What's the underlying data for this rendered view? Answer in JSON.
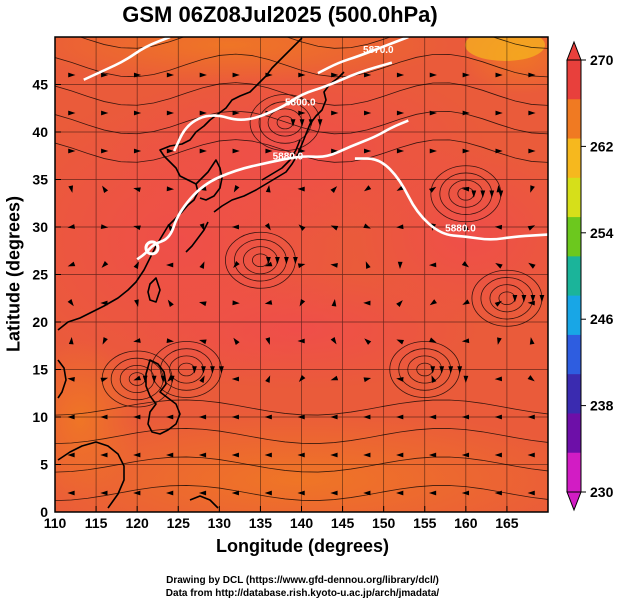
{
  "title": "GSM 06Z08Jul2025 (500.0hPa)",
  "xlabel": "Longitude (degrees)",
  "ylabel": "Latitude  (degrees)",
  "credits": {
    "line1": "Drawing by DCL (https://www.gfd-dennou.org/library/dcl/)",
    "line2": "Data from http://database.rish.kyoto-u.ac.jp/arch/jmadata/"
  },
  "chart_data": {
    "type": "heatmap",
    "variable_range": [
      230,
      270
    ],
    "xlim": [
      110,
      170
    ],
    "ylim": [
      0,
      50
    ],
    "x_ticks": [
      110,
      115,
      120,
      125,
      130,
      135,
      140,
      145,
      150,
      155,
      160,
      165
    ],
    "y_ticks": [
      0,
      5,
      10,
      15,
      20,
      25,
      30,
      35,
      40,
      45
    ],
    "colorbar": {
      "ticks": [
        270,
        262,
        254,
        246,
        238,
        230
      ],
      "colors": [
        "#e8403c",
        "#f07a22",
        "#f6b81e",
        "#d6df1a",
        "#6cc81e",
        "#1bb49a",
        "#18a6e6",
        "#2e5de0",
        "#3a2bb0",
        "#6d0fa8",
        "#d21cc4"
      ]
    },
    "contours": [
      {
        "label": "5800.0",
        "points": [
          [
            124.5,
            38.0
          ],
          [
            126,
            40.8
          ],
          [
            129,
            42.0
          ],
          [
            133,
            41.0
          ],
          [
            137.5,
            42.5
          ],
          [
            140,
            44.0
          ],
          [
            143,
            44.8
          ],
          [
            147,
            46.3
          ],
          [
            151,
            47.3
          ]
        ]
      },
      {
        "label": "5880.0",
        "points": [
          [
            120,
            26.6
          ],
          [
            121,
            27.2
          ],
          [
            122,
            28.2
          ],
          [
            124,
            28.8
          ],
          [
            125,
            31.5
          ],
          [
            128,
            34.5
          ],
          [
            132,
            36.0
          ],
          [
            136,
            36.8
          ],
          [
            140,
            37.5
          ],
          [
            143,
            37.3
          ],
          [
            146,
            38.5
          ],
          [
            149,
            39.5
          ],
          [
            151,
            40.5
          ],
          [
            153,
            41.2
          ]
        ]
      },
      {
        "label": "5880.0",
        "points": [
          [
            146.5,
            37.2
          ],
          [
            149.5,
            37.2
          ],
          [
            152,
            35.0
          ],
          [
            154,
            31.5
          ],
          [
            157,
            29.2
          ],
          [
            160,
            29.0
          ],
          [
            163,
            28.6
          ],
          [
            166,
            29.0
          ],
          [
            170,
            29.2
          ]
        ]
      },
      {
        "label": "5870.0",
        "points": [
          [
            142,
            46.2
          ],
          [
            144.5,
            47.3
          ],
          [
            147,
            48.0
          ],
          [
            150,
            49.0
          ],
          [
            153,
            50.0
          ]
        ]
      },
      {
        "label": "",
        "points": [
          [
            113.5,
            45.5
          ],
          [
            116,
            46.5
          ],
          [
            118.5,
            47.5
          ],
          [
            121,
            49.0
          ],
          [
            124,
            50.0
          ]
        ]
      }
    ],
    "low_center_marker": [
      121.8,
      27.8
    ],
    "vortex_centers": [
      [
        135,
        26.5
      ],
      [
        160,
        33.5
      ],
      [
        165,
        22.5
      ],
      [
        126,
        15
      ],
      [
        155,
        15
      ],
      [
        138,
        41
      ],
      [
        120,
        14
      ]
    ]
  }
}
